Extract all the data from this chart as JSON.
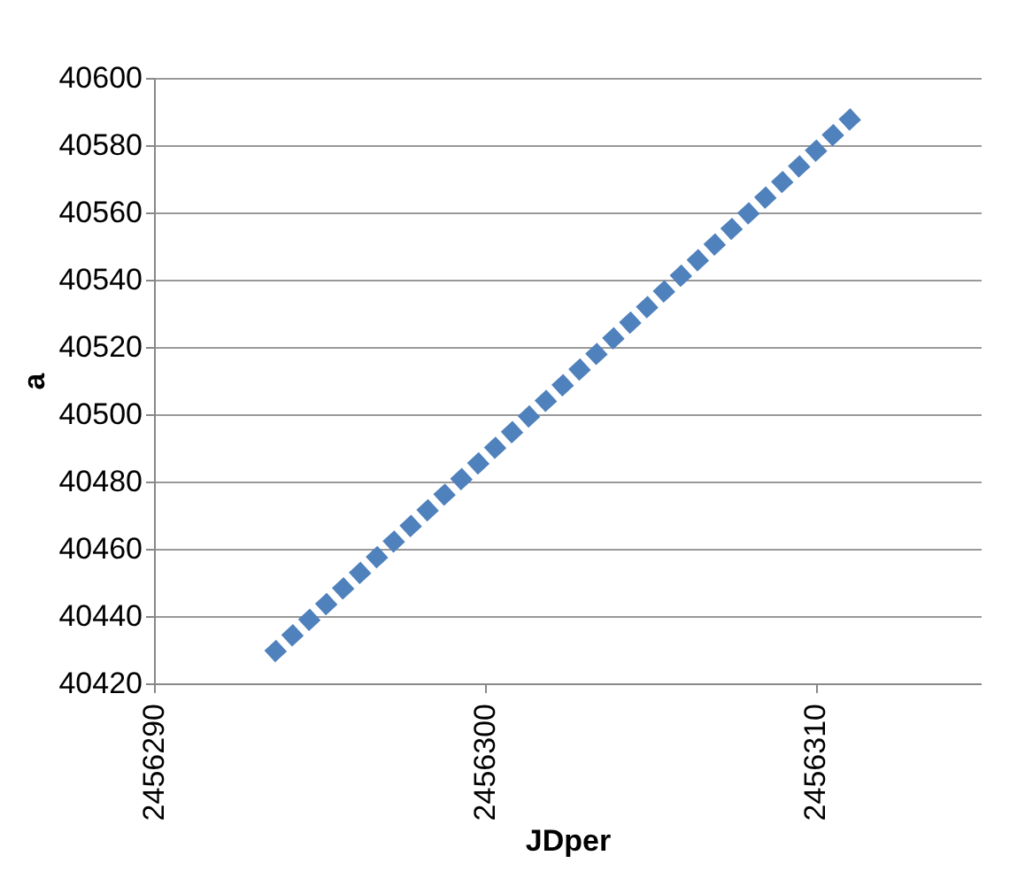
{
  "chart_data": {
    "type": "line",
    "xlabel": "JDper",
    "ylabel": "a",
    "series": [
      {
        "color": "#4f81bd",
        "x": [
          2456293.5,
          2456302.4,
          2456311.3
        ],
        "values": [
          40428,
          40509,
          40590
        ]
      }
    ],
    "xlim": [
      2456290,
      2456315
    ],
    "xticks": [
      2456290,
      2456300,
      2456310
    ],
    "ylim": [
      40420,
      40600
    ],
    "yticks": [
      40420,
      40440,
      40460,
      40480,
      40500,
      40520,
      40540,
      40560,
      40580,
      40600
    ],
    "grid": "y",
    "line_style": "dotted",
    "marker": "none"
  }
}
